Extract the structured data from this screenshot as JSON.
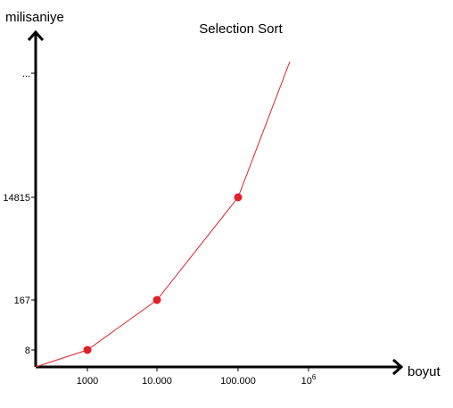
{
  "chart_data": {
    "type": "line",
    "title": "Selection Sort",
    "xlabel": "boyut",
    "ylabel": "milisaniye",
    "x_ticks": [
      {
        "label": "1000"
      },
      {
        "label": "10.000"
      },
      {
        "label": "100.000"
      },
      {
        "label": "10",
        "superscript": "6"
      }
    ],
    "y_ticks": [
      {
        "label": "8"
      },
      {
        "label": "167"
      },
      {
        "label": "14815"
      },
      {
        "label": "..."
      }
    ],
    "series": [
      {
        "color": "#e0202a",
        "points": [
          {
            "x": "1000",
            "y": 8
          },
          {
            "x": "10.000",
            "y": 167
          },
          {
            "x": "100.000",
            "y": 14815
          }
        ]
      }
    ],
    "grid": false,
    "legend": "none"
  },
  "colors": {
    "axis": "#000000",
    "line": "#e0202a",
    "marker": "#e0202a"
  }
}
